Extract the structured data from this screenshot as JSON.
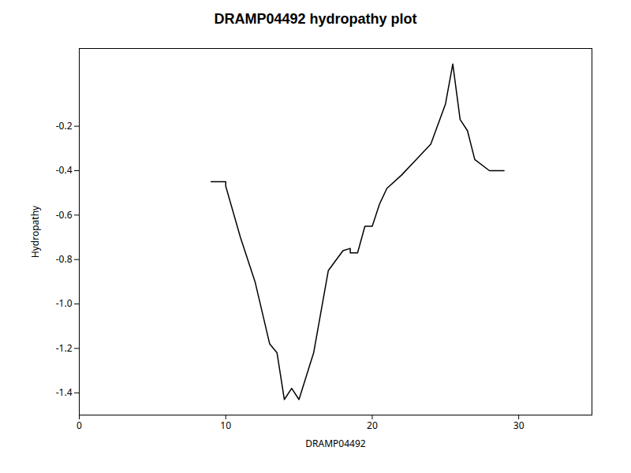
{
  "chart_data": {
    "type": "line",
    "title": "DRAMP04492 hydropathy plot",
    "xlabel": "DRAMP04492",
    "ylabel": "Hydropathy",
    "x": [
      9,
      10,
      10,
      11,
      12,
      13,
      13.5,
      14,
      14.5,
      15,
      16,
      17,
      18,
      18.5,
      18.5,
      19,
      19.5,
      20,
      20.5,
      21,
      22,
      23,
      24,
      25,
      25.5,
      26,
      26.5,
      27,
      28,
      29
    ],
    "values": [
      -0.45,
      -0.45,
      -0.47,
      -0.7,
      -0.9,
      -1.18,
      -1.22,
      -1.43,
      -1.38,
      -1.43,
      -1.22,
      -0.85,
      -0.76,
      -0.75,
      -0.77,
      -0.77,
      -0.65,
      -0.65,
      -0.55,
      -0.48,
      -0.42,
      -0.35,
      -0.28,
      -0.1,
      0.08,
      -0.17,
      -0.22,
      -0.35,
      -0.4,
      -0.4
    ],
    "color": "#000000",
    "xlim": [
      0,
      35
    ],
    "ylim": [
      -1.5,
      0.15
    ],
    "xticks": [
      0,
      10,
      20,
      30
    ],
    "yticks": [
      -1.4,
      -1.2,
      {
        "value": -1.0,
        "label": "-1.0"
      },
      -0.8,
      -0.6,
      -0.4,
      -0.2
    ],
    "grid": false
  }
}
